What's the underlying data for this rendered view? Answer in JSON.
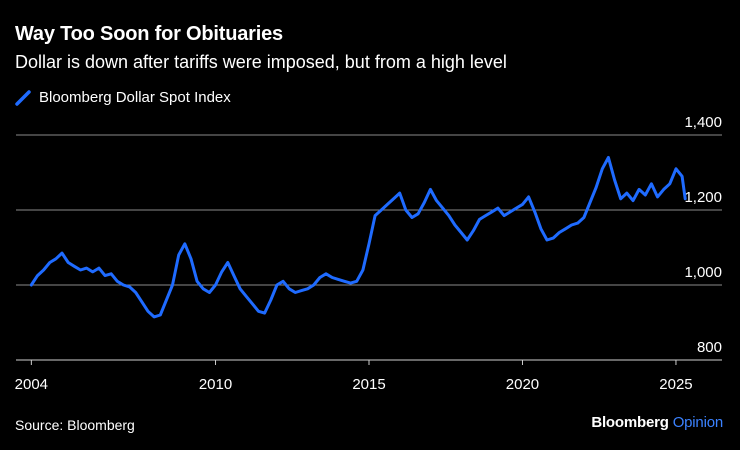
{
  "title": "Way Too Soon for Obituaries",
  "subtitle": "Dollar is down after tariffs were imposed, but from a high level",
  "source": "Source: Bloomberg",
  "brand": {
    "name": "Bloomberg",
    "section": "Opinion",
    "section_color": "#3b82ff"
  },
  "colors": {
    "background": "#000000",
    "series": "#1f6bff",
    "grid": "#8a8a8a",
    "text": "#ffffff"
  },
  "chart_data": {
    "type": "line",
    "title": "Way Too Soon for Obituaries",
    "subtitle": "Dollar is down after tariffs were imposed, but from a high level",
    "xlabel": "",
    "ylabel": "",
    "xlim": [
      2003.5,
      2026.5
    ],
    "ylim": [
      800,
      1400
    ],
    "x_ticks": [
      2004,
      2010,
      2015,
      2020,
      2025
    ],
    "x_tick_labels": [
      "2004",
      "2010",
      "2015",
      "2020",
      "2025"
    ],
    "y_ticks": [
      800,
      1000,
      1200,
      1400
    ],
    "y_tick_labels": [
      "800",
      "1,000",
      "1,200",
      "1,400"
    ],
    "grid": "horizontal",
    "legend_position": "top-left",
    "series": [
      {
        "name": "Bloomberg Dollar Spot Index",
        "x": [
          2004.0,
          2004.2,
          2004.4,
          2004.6,
          2004.8,
          2005.0,
          2005.2,
          2005.4,
          2005.6,
          2005.8,
          2006.0,
          2006.2,
          2006.4,
          2006.6,
          2006.8,
          2007.0,
          2007.2,
          2007.4,
          2007.6,
          2007.8,
          2008.0,
          2008.2,
          2008.4,
          2008.6,
          2008.8,
          2009.0,
          2009.2,
          2009.4,
          2009.6,
          2009.8,
          2010.0,
          2010.2,
          2010.4,
          2010.6,
          2010.8,
          2011.0,
          2011.2,
          2011.4,
          2011.6,
          2011.8,
          2012.0,
          2012.2,
          2012.4,
          2012.6,
          2012.8,
          2013.0,
          2013.2,
          2013.4,
          2013.6,
          2013.8,
          2014.0,
          2014.2,
          2014.4,
          2014.6,
          2014.8,
          2015.0,
          2015.2,
          2015.4,
          2015.6,
          2015.8,
          2016.0,
          2016.2,
          2016.4,
          2016.6,
          2016.8,
          2017.0,
          2017.2,
          2017.4,
          2017.6,
          2017.8,
          2018.0,
          2018.2,
          2018.4,
          2018.6,
          2018.8,
          2019.0,
          2019.2,
          2019.4,
          2019.6,
          2019.8,
          2020.0,
          2020.2,
          2020.4,
          2020.6,
          2020.8,
          2021.0,
          2021.2,
          2021.4,
          2021.6,
          2021.8,
          2022.0,
          2022.2,
          2022.4,
          2022.6,
          2022.8,
          2023.0,
          2023.2,
          2023.4,
          2023.6,
          2023.8,
          2024.0,
          2024.2,
          2024.4,
          2024.6,
          2024.8,
          2025.0,
          2025.2,
          2025.3
        ],
        "values": [
          1000,
          1025,
          1040,
          1060,
          1070,
          1085,
          1060,
          1050,
          1040,
          1045,
          1035,
          1045,
          1025,
          1030,
          1010,
          1000,
          995,
          980,
          955,
          930,
          915,
          920,
          960,
          1000,
          1080,
          1110,
          1070,
          1010,
          990,
          980,
          1000,
          1035,
          1060,
          1025,
          990,
          970,
          950,
          930,
          925,
          960,
          1000,
          1010,
          990,
          980,
          985,
          990,
          1000,
          1020,
          1030,
          1020,
          1015,
          1010,
          1005,
          1010,
          1040,
          1110,
          1185,
          1200,
          1215,
          1230,
          1245,
          1200,
          1180,
          1190,
          1220,
          1255,
          1225,
          1205,
          1185,
          1160,
          1140,
          1120,
          1145,
          1175,
          1185,
          1195,
          1205,
          1185,
          1195,
          1205,
          1215,
          1235,
          1195,
          1150,
          1120,
          1125,
          1140,
          1150,
          1160,
          1165,
          1180,
          1220,
          1260,
          1310,
          1340,
          1280,
          1230,
          1245,
          1225,
          1255,
          1240,
          1270,
          1235,
          1255,
          1270,
          1310,
          1290,
          1230
        ]
      }
    ]
  }
}
